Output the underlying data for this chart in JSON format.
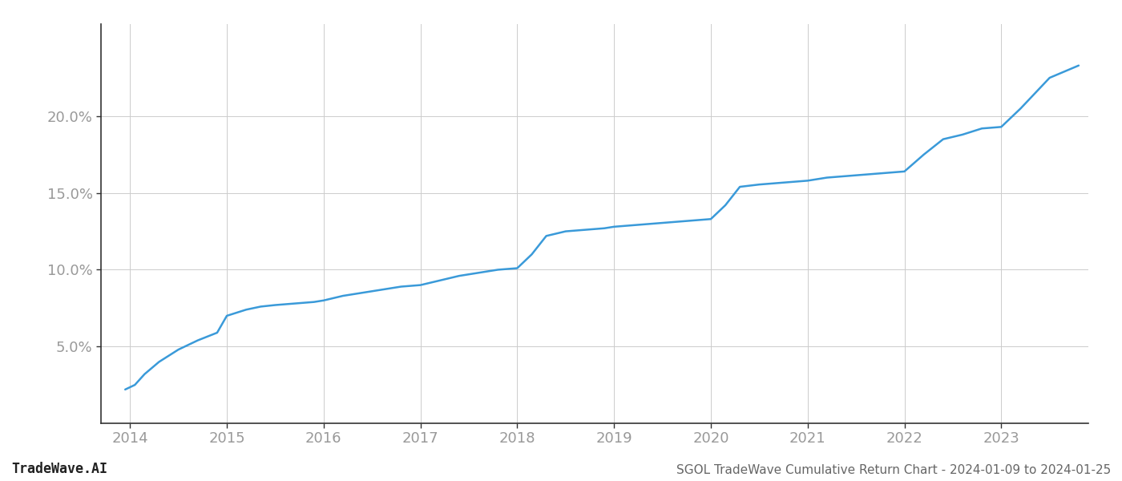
{
  "title": "SGOL TradeWave Cumulative Return Chart - 2024-01-09 to 2024-01-25",
  "watermark": "TradeWave.AI",
  "line_color": "#3a9ad9",
  "background_color": "#ffffff",
  "grid_color": "#cccccc",
  "x_years": [
    2014,
    2015,
    2016,
    2017,
    2018,
    2019,
    2020,
    2021,
    2022,
    2023
  ],
  "x_data": [
    2013.95,
    2014.05,
    2014.15,
    2014.3,
    2014.5,
    2014.7,
    2014.9,
    2015.0,
    2015.1,
    2015.2,
    2015.35,
    2015.5,
    2015.7,
    2015.9,
    2016.0,
    2016.2,
    2016.4,
    2016.6,
    2016.8,
    2017.0,
    2017.2,
    2017.4,
    2017.6,
    2017.8,
    2018.0,
    2018.15,
    2018.3,
    2018.5,
    2018.7,
    2018.9,
    2019.0,
    2019.2,
    2019.4,
    2019.6,
    2019.8,
    2020.0,
    2020.15,
    2020.3,
    2020.5,
    2020.7,
    2020.9,
    2021.0,
    2021.2,
    2021.4,
    2021.6,
    2021.8,
    2022.0,
    2022.2,
    2022.4,
    2022.6,
    2022.8,
    2023.0,
    2023.2,
    2023.5,
    2023.8
  ],
  "y_data": [
    2.2,
    2.5,
    3.2,
    4.0,
    4.8,
    5.4,
    5.9,
    7.0,
    7.2,
    7.4,
    7.6,
    7.7,
    7.8,
    7.9,
    8.0,
    8.3,
    8.5,
    8.7,
    8.9,
    9.0,
    9.3,
    9.6,
    9.8,
    10.0,
    10.1,
    11.0,
    12.2,
    12.5,
    12.6,
    12.7,
    12.8,
    12.9,
    13.0,
    13.1,
    13.2,
    13.3,
    14.2,
    15.4,
    15.55,
    15.65,
    15.75,
    15.8,
    16.0,
    16.1,
    16.2,
    16.3,
    16.4,
    17.5,
    18.5,
    18.8,
    19.2,
    19.3,
    20.5,
    22.5,
    23.3
  ],
  "yticks": [
    5.0,
    10.0,
    15.0,
    20.0
  ],
  "ylim": [
    0,
    26
  ],
  "xlim": [
    2013.7,
    2023.9
  ],
  "title_fontsize": 11,
  "watermark_fontsize": 12,
  "axis_label_color": "#999999",
  "spine_color": "#333333",
  "tick_fontsize": 13,
  "line_width": 1.8
}
